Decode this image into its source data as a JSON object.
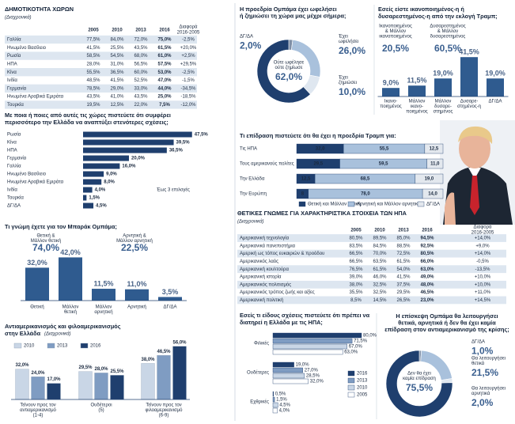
{
  "countries_table": {
    "title": "ΔΗΜΟΤΙΚΟΤΗΤΑ ΧΩΡΩΝ",
    "subtitle": "(Διαχρονικά)",
    "columns": [
      "2005",
      "2010",
      "2013",
      "2016",
      [
        "Διαφορά",
        "2016-2005"
      ]
    ],
    "rows": [
      [
        "Γαλλία",
        "77,5%",
        "84,0%",
        "72,0%",
        "75,0%",
        "-2,5%"
      ],
      [
        "Ηνωμένο Βασίλειο",
        "41,5%",
        "25,5%",
        "43,5%",
        "61,5%",
        "+20,0%"
      ],
      [
        "Ρωσία",
        "58,5%",
        "54,5%",
        "68,0%",
        "61,0%",
        "+2,5%"
      ],
      [
        "ΗΠΑ",
        "28,0%",
        "31,0%",
        "56,5%",
        "57,5%",
        "+29,5%"
      ],
      [
        "Κίνα",
        "55,5%",
        "36,5%",
        "60,0%",
        "53,0%",
        "-2,5%"
      ],
      [
        "Ινδία",
        "48,5%",
        "41,5%",
        "52,5%",
        "47,0%",
        "-1,5%"
      ],
      [
        "Γερμανία",
        "78,5%",
        "29,0%",
        "33,0%",
        "44,0%",
        "-34,5%"
      ],
      [
        "Ηνωμένα Αραβικά Εμιράτα",
        "43,5%",
        "41,0%",
        "43,5%",
        "25,0%",
        "-18,5%"
      ],
      [
        "Τουρκία",
        "19,5%",
        "12,5%",
        "22,0%",
        "7,5%",
        "-12,0%"
      ]
    ]
  },
  "partners": {
    "type": "bar",
    "title": [
      "Με ποια ή ποιες από αυτές τις χώρες πιστεύετε ότι συμφέρει",
      "περισσότερο την Ελλάδα να αναπτύξει στενότερες σχέσεις;"
    ],
    "note": "Έως 3 επιλογές",
    "color": "#1f3f6e",
    "categories": [
      "Ρωσία",
      "Κίνα",
      "ΗΠΑ",
      "Γερμανία",
      "Γαλλία",
      "Ηνωμένο Βασίλειο",
      "Ηνωμένα Αραβικά Εμιράτα",
      "Ινδία",
      "Τουρκία",
      "ΔΓ/ΔΑ"
    ],
    "values": [
      47.5,
      39.5,
      36.5,
      20,
      16,
      9,
      8,
      4,
      1.5,
      4.5
    ],
    "value_labels": [
      "47,5%",
      "39,5%",
      "36,5%",
      "20,0%",
      "16,0%",
      "9,0%",
      "8,0%",
      "4,0%",
      "1,5%",
      "4,5%"
    ]
  },
  "obama_opinion": {
    "type": "bar",
    "title": "Τι γνώμη έχετε για τον Μπαράκ Ομπάμα;",
    "color": "#2f5b8f",
    "groups": [
      {
        "label": [
          "Θετική &",
          "Μάλλον θετική"
        ],
        "total": "74,0%"
      },
      {
        "label": [
          "Αρνητική &",
          "Μάλλον αρνητική"
        ],
        "total": "22,5%"
      }
    ],
    "categories": [
      [
        "Θετική"
      ],
      [
        "Μάλλον",
        "θετική"
      ],
      [
        "Μάλλον",
        "αρνητική"
      ],
      [
        "Αρνητική"
      ],
      [
        "ΔΓ/ΔΑ"
      ]
    ],
    "values": [
      32,
      42,
      11.5,
      11,
      3.5
    ],
    "value_labels": [
      "32,0%",
      "42,0%",
      "11,5%",
      "11,0%",
      "3,5%"
    ]
  },
  "anti_americanism": {
    "type": "grouped-bar",
    "title": [
      "Αντιαμερικανισμός και φιλοαμερικανισμός",
      "στην Ελλάδα"
    ],
    "subtitle": "(Διαχρονικά)",
    "categories": [
      [
        "Τείνουν προς τον",
        "αντιαμερικανισμό",
        "(1-4)"
      ],
      [
        "Ουδέτεροι",
        "(5)"
      ],
      [
        "Τείνουν προς τον",
        "φιλοαμερικανισμό",
        "(6-9)"
      ]
    ],
    "series": [
      {
        "name": "2010",
        "color": "#c9d6e6",
        "values": [
          32,
          29.5,
          38
        ],
        "value_labels": [
          "32,0%",
          "29,5%",
          "38,0%"
        ]
      },
      {
        "name": "2013",
        "color": "#7f9cc2",
        "values": [
          24,
          28,
          46.5
        ],
        "value_labels": [
          "24,0%",
          "28,0%",
          "46,5%"
        ]
      },
      {
        "name": "2016",
        "color": "#1f3f6e",
        "values": [
          17,
          25.5,
          56
        ],
        "value_labels": [
          "17,0%",
          "25,5%",
          "56,0%"
        ]
      }
    ]
  },
  "obama_benefit": {
    "type": "donut",
    "title": [
      "Η προεδρία Ομπάμα έχει ωφελήσει",
      "ή ζημιώσει τη χώρα μας μέχρι σήμερα;"
    ],
    "segments": [
      {
        "label": [
          "ΔΓ/ΔΑ"
        ],
        "value": 2,
        "value_label": "2,0%",
        "color": "#7f8fa6"
      },
      {
        "label": [
          "Έχει",
          "ωφελήσει"
        ],
        "value": 26,
        "value_label": "26,0%",
        "color": "#a9c1dc"
      },
      {
        "label": [
          "Έχει",
          "ζημιώσει"
        ],
        "value": 10,
        "value_label": "10,0%",
        "color": "#dfe7f0"
      },
      {
        "label": [
          "Ούτε ωφέλησε",
          "ούτε ζημίωσε"
        ],
        "value": 62,
        "value_label": "62,0%",
        "color": "#1f3f6e"
      }
    ]
  },
  "trump_satisfaction": {
    "type": "bar",
    "title": [
      "Εσείς είστε ικανοποιημένος-η ή",
      "δυσαρεστημένος-η από την εκλογή Τραμπ;"
    ],
    "color": "#2f5b8f",
    "groups": [
      {
        "label": [
          "Ικανοποιημένος",
          "& Μάλλον",
          "ικανοποιημένος"
        ],
        "total": "20,5%"
      },
      {
        "label": [
          "Δυσαρεστημένος",
          "& Μάλλον",
          "δυσαρεστημένος"
        ],
        "total": "60,5%"
      }
    ],
    "categories": [
      [
        "Ικανο-",
        "ποιημένος"
      ],
      [
        "Μάλλον",
        "ικανο-",
        "ποιημένος"
      ],
      [
        "Μάλλον",
        "δυσαρε-",
        "στημένος"
      ],
      [
        "Δυσαρε-",
        "στημένος-η"
      ],
      [
        "ΔΓ/ΔΑ"
      ]
    ],
    "values": [
      9,
      11.5,
      19,
      41.5,
      19
    ],
    "value_labels": [
      "9,0%",
      "11,5%",
      "19,0%",
      "41,5%",
      "19,0%"
    ]
  },
  "trump_impact": {
    "type": "stacked-bar",
    "title": "Τι επίδραση πιστεύετε ότι θα έχει η προεδρία Τραμπ για:",
    "categories": [
      "Τις ΗΠΑ",
      "Τους αμερικανούς πολίτες",
      "Την Ελλάδα",
      "Την Ευρώπη"
    ],
    "series": [
      {
        "name": "Θετική και Μάλλον θετική",
        "color": "#1f3f6e",
        "values": [
          32,
          29.5,
          12.5,
          8
        ],
        "value_labels": [
          "32,0",
          "29,5",
          "12,5",
          "8"
        ]
      },
      {
        "name": "Αρνητική και Μάλλον αρνητική",
        "color": "#a9c1dc",
        "values": [
          55.5,
          59.5,
          68.5,
          78
        ],
        "value_labels": [
          "55,5",
          "59,5",
          "68,5",
          "78,0"
        ]
      },
      {
        "name": "ΔΓ/ΔΑ",
        "color": "#e3e8ee",
        "values": [
          12.5,
          11,
          19,
          14
        ],
        "value_labels": [
          "12,5",
          "11,0",
          "19,0",
          "14,0"
        ]
      }
    ]
  },
  "us_characteristics": {
    "title": "ΘΕΤΙΚΕΣ ΓΝΩΜΕΣ ΓΙΑ ΧΑΡΑΚΤΗΡΙΣΤΙΚΑ ΣΤΟΙΧΕΙΑ ΤΩΝ ΗΠΑ",
    "subtitle": "(Διαχρονικά)",
    "columns": [
      "2005",
      "2010",
      "2013",
      "2016",
      [
        "Διαφορά",
        "2016-2005"
      ]
    ],
    "rows": [
      [
        "Αμερικανική τεχνολογία",
        "80,5%",
        "89,5%",
        "85,0%",
        "94,5%",
        "+14,0%"
      ],
      [
        "Αμερικανικά πανεπιστήμια",
        "83,5%",
        "84,5%",
        "88,5%",
        "92,5%",
        "+9,0%"
      ],
      [
        "Αμερική ως τόπος ευκαιριών & προόδου",
        "66,5%",
        "70,0%",
        "72,5%",
        "80,5%",
        "+14,0%"
      ],
      [
        "Αμερικανικός λαός",
        "66,5%",
        "63,5%",
        "61,5%",
        "66,0%",
        "-0,5%"
      ],
      [
        "Αμερικανική κουλτούρα",
        "76,5%",
        "61,5%",
        "54,0%",
        "63,0%",
        "-13,5%"
      ],
      [
        "Αμερικανική ιστορία",
        "39,0%",
        "46,0%",
        "41,5%",
        "49,0%",
        "+10,0%"
      ],
      [
        "Αμερικανικός πολιτισμός",
        "38,0%",
        "32,5%",
        "37,5%",
        "48,0%",
        "+10,0%"
      ],
      [
        "Αμερικανικός τρόπος ζωής και αξίες",
        "35,5%",
        "32,5%",
        "29,5%",
        "46,5%",
        "+11,0%"
      ],
      [
        "Αμερικανική πολιτική",
        "8,5%",
        "14,5%",
        "26,5%",
        "23,0%",
        "+14,5%"
      ]
    ]
  },
  "relations": {
    "type": "grouped-hbar",
    "title": [
      "Εσείς τι είδους σχέσεις πιστεύετε ότι πρέπει να",
      "διατηρεί η Ελλάδα με τις ΗΠΑ;"
    ],
    "categories": [
      "Φιλικές",
      "Ουδέτερες",
      "Εχθρικές"
    ],
    "series": [
      {
        "name": "2016",
        "color": "#1f3f6e",
        "values": [
          80,
          19,
          0.5
        ],
        "value_labels": [
          "80,0%",
          "19,0%",
          "0,5%"
        ]
      },
      {
        "name": "2013",
        "color": "#7f9cc2",
        "values": [
          71.5,
          27,
          1.5
        ],
        "value_labels": [
          "71,5%",
          "27,0%",
          "1,5%"
        ]
      },
      {
        "name": "2010",
        "color": "#c9d6e6",
        "values": [
          67,
          28.5,
          4.5
        ],
        "value_labels": [
          "67,0%",
          "28,5%",
          "4,5%"
        ]
      },
      {
        "name": "2005",
        "color": "#ffffff",
        "values": [
          63,
          32,
          4
        ],
        "value_labels": [
          "63,0%",
          "32,0%",
          "4,0%"
        ]
      }
    ]
  },
  "visit_effect": {
    "type": "donut",
    "title": [
      "Η επίσκεψη Ομπάμα θα λειτουργήσει",
      "θετικά, αρνητικά ή δεν θα έχει καμία",
      "επίδραση στον αντιαμερικανισμό της κρίσης;"
    ],
    "segments": [
      {
        "label": [
          "ΔΓ/ΔΑ"
        ],
        "value": 1,
        "value_label": "1,0%",
        "color": "#7f8fa6"
      },
      {
        "label": [
          "Θα λειτουργήσει",
          "θετικά"
        ],
        "value": 21.5,
        "value_label": "21,5%",
        "color": "#a9c1dc"
      },
      {
        "label": [
          "Θα λειτουργήσει",
          "αρνητικά"
        ],
        "value": 2,
        "value_label": "2,0%",
        "color": "#dfe7f0"
      },
      {
        "label": [
          "Δεν θα έχει",
          "καμία επίδραση"
        ],
        "value": 75.5,
        "value_label": "75,5%",
        "color": "#1f3f6e"
      }
    ]
  }
}
